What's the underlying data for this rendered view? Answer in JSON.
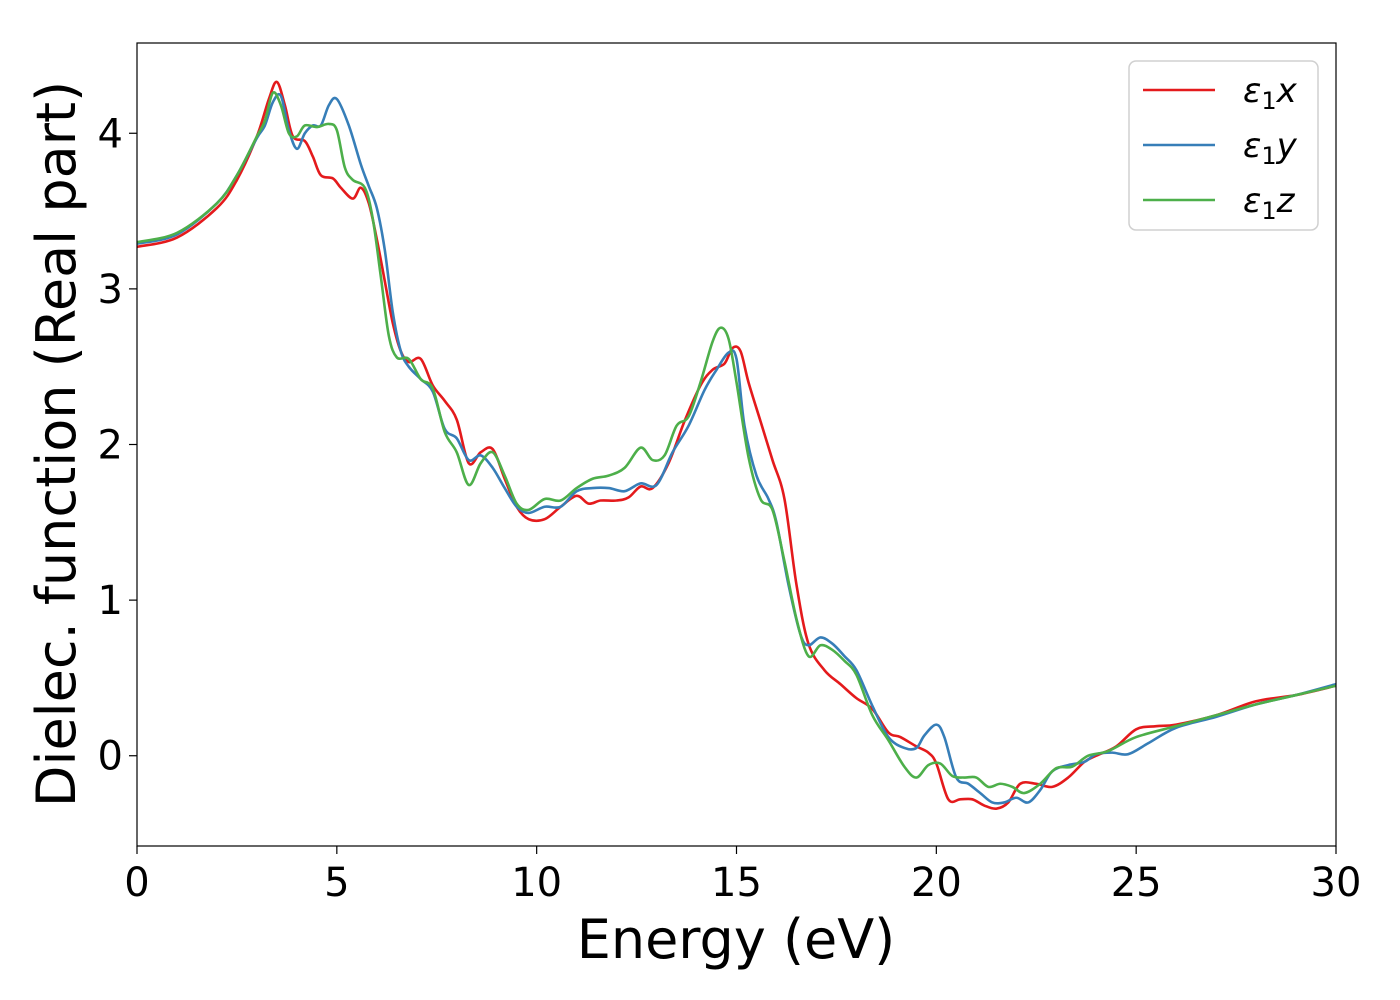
{
  "chart_data": {
    "type": "line",
    "title": "",
    "xlabel": "Energy (eV)",
    "ylabel": "Dielec. function (Real part)",
    "xlim": [
      0,
      30
    ],
    "ylim": [
      -0.58,
      4.58
    ],
    "xticks": [
      0,
      5,
      10,
      15,
      20,
      25,
      30
    ],
    "yticks": [
      0,
      1,
      2,
      3,
      4
    ],
    "grid": false,
    "legend_position": "top-right",
    "series": [
      {
        "name": "ε₁x",
        "label_main": "ε",
        "label_sub": "1",
        "label_axis": "x",
        "color": "#e41a1c",
        "x": [
          0,
          1,
          2,
          2.5,
          3,
          3.3,
          3.5,
          3.7,
          3.9,
          4.2,
          4.4,
          4.6,
          4.9,
          5.1,
          5.4,
          5.6,
          5.8,
          6.0,
          6.2,
          6.4,
          6.6,
          6.8,
          7.1,
          7.4,
          7.7,
          8.0,
          8.3,
          8.6,
          8.9,
          9.2,
          9.5,
          9.8,
          10.2,
          10.6,
          11.0,
          11.3,
          11.6,
          12.0,
          12.3,
          12.6,
          12.9,
          13.3,
          13.7,
          14.1,
          14.4,
          14.7,
          14.9,
          15.1,
          15.3,
          15.6,
          15.9,
          16.2,
          16.5,
          16.8,
          17.2,
          17.6,
          18.0,
          18.4,
          18.8,
          19.1,
          19.5,
          19.8,
          20.0,
          20.3,
          20.6,
          20.9,
          21.2,
          21.5,
          21.8,
          22.1,
          22.5,
          22.9,
          23.3,
          23.7,
          24.0,
          24.5,
          25.0,
          25.5,
          26.0,
          27.0,
          28.0,
          29.0,
          30.0
        ],
        "y": [
          3.27,
          3.33,
          3.52,
          3.7,
          3.98,
          4.22,
          4.33,
          4.18,
          3.98,
          3.95,
          3.85,
          3.73,
          3.71,
          3.65,
          3.58,
          3.65,
          3.55,
          3.32,
          3.05,
          2.78,
          2.6,
          2.53,
          2.55,
          2.38,
          2.28,
          2.16,
          1.88,
          1.95,
          1.97,
          1.78,
          1.6,
          1.52,
          1.52,
          1.6,
          1.67,
          1.62,
          1.64,
          1.64,
          1.66,
          1.73,
          1.72,
          1.88,
          2.15,
          2.38,
          2.48,
          2.52,
          2.62,
          2.6,
          2.4,
          2.15,
          1.9,
          1.65,
          1.1,
          0.72,
          0.55,
          0.46,
          0.37,
          0.3,
          0.15,
          0.12,
          0.06,
          0.02,
          -0.05,
          -0.28,
          -0.28,
          -0.28,
          -0.32,
          -0.34,
          -0.3,
          -0.18,
          -0.18,
          -0.2,
          -0.14,
          -0.04,
          0.0,
          0.06,
          0.17,
          0.19,
          0.2,
          0.26,
          0.35,
          0.39,
          0.45
        ]
      },
      {
        "name": "ε₁y",
        "label_main": "ε",
        "label_sub": "1",
        "label_axis": "y",
        "color": "#377eb8",
        "x": [
          0,
          1,
          2,
          2.5,
          3,
          3.2,
          3.4,
          3.6,
          3.8,
          4.0,
          4.2,
          4.4,
          4.6,
          4.8,
          5.0,
          5.3,
          5.6,
          5.8,
          6.0,
          6.2,
          6.4,
          6.6,
          6.8,
          7.1,
          7.4,
          7.7,
          8.0,
          8.3,
          8.6,
          8.9,
          9.2,
          9.5,
          9.8,
          10.2,
          10.6,
          11.0,
          11.4,
          11.8,
          12.2,
          12.6,
          13.0,
          13.4,
          13.8,
          14.2,
          14.5,
          14.8,
          15.0,
          15.2,
          15.5,
          15.8,
          16.0,
          16.3,
          16.6,
          16.8,
          17.1,
          17.4,
          17.7,
          18.0,
          18.4,
          18.8,
          19.2,
          19.5,
          19.7,
          20.0,
          20.2,
          20.5,
          20.8,
          21.1,
          21.4,
          21.7,
          22.0,
          22.3,
          22.6,
          22.9,
          23.3,
          23.7,
          24.0,
          24.4,
          24.8,
          25.3,
          26.0,
          27.0,
          28.0,
          29.0,
          30.0
        ],
        "y": [
          3.29,
          3.35,
          3.55,
          3.73,
          3.97,
          4.05,
          4.2,
          4.24,
          4.02,
          3.9,
          4.0,
          4.05,
          4.05,
          4.18,
          4.22,
          4.05,
          3.8,
          3.66,
          3.52,
          3.25,
          2.85,
          2.6,
          2.5,
          2.42,
          2.34,
          2.1,
          2.04,
          1.9,
          1.93,
          1.85,
          1.72,
          1.6,
          1.56,
          1.6,
          1.6,
          1.7,
          1.72,
          1.72,
          1.7,
          1.75,
          1.74,
          1.95,
          2.12,
          2.35,
          2.48,
          2.59,
          2.55,
          2.12,
          1.8,
          1.65,
          1.5,
          1.1,
          0.78,
          0.71,
          0.76,
          0.72,
          0.64,
          0.55,
          0.32,
          0.12,
          0.05,
          0.05,
          0.13,
          0.2,
          0.12,
          -0.14,
          -0.18,
          -0.24,
          -0.3,
          -0.3,
          -0.27,
          -0.3,
          -0.22,
          -0.1,
          -0.06,
          -0.04,
          0.01,
          0.02,
          0.01,
          0.08,
          0.18,
          0.25,
          0.33,
          0.39,
          0.46
        ]
      },
      {
        "name": "ε₁z",
        "label_main": "ε",
        "label_sub": "1",
        "label_axis": "z",
        "color": "#4daf4a",
        "x": [
          0,
          1,
          2,
          2.5,
          3,
          3.2,
          3.4,
          3.6,
          3.8,
          4.0,
          4.2,
          4.5,
          4.8,
          5.0,
          5.2,
          5.4,
          5.7,
          5.9,
          6.1,
          6.3,
          6.5,
          6.8,
          7.1,
          7.4,
          7.7,
          8.0,
          8.3,
          8.6,
          8.9,
          9.2,
          9.5,
          9.8,
          10.2,
          10.6,
          11.0,
          11.4,
          11.8,
          12.2,
          12.6,
          12.9,
          13.2,
          13.5,
          13.8,
          14.1,
          14.4,
          14.6,
          14.8,
          15.0,
          15.3,
          15.6,
          15.9,
          16.2,
          16.5,
          16.8,
          17.1,
          17.4,
          17.7,
          18.0,
          18.4,
          18.8,
          19.2,
          19.5,
          19.8,
          20.1,
          20.4,
          20.7,
          21.0,
          21.3,
          21.6,
          21.9,
          22.2,
          22.6,
          23.0,
          23.4,
          23.8,
          24.3,
          25.0,
          26.0,
          27.0,
          28.0,
          29.0,
          30.0
        ],
        "y": [
          3.3,
          3.36,
          3.55,
          3.73,
          3.98,
          4.08,
          4.26,
          4.18,
          4.0,
          3.98,
          4.05,
          4.04,
          4.06,
          4.02,
          3.78,
          3.7,
          3.65,
          3.45,
          3.08,
          2.7,
          2.56,
          2.55,
          2.42,
          2.36,
          2.08,
          1.95,
          1.74,
          1.88,
          1.95,
          1.8,
          1.62,
          1.58,
          1.65,
          1.64,
          1.72,
          1.78,
          1.8,
          1.85,
          1.98,
          1.9,
          1.93,
          2.12,
          2.18,
          2.4,
          2.66,
          2.75,
          2.68,
          2.4,
          1.92,
          1.65,
          1.58,
          1.25,
          0.88,
          0.64,
          0.71,
          0.68,
          0.61,
          0.52,
          0.26,
          0.1,
          -0.07,
          -0.14,
          -0.06,
          -0.05,
          -0.13,
          -0.14,
          -0.14,
          -0.2,
          -0.18,
          -0.2,
          -0.24,
          -0.18,
          -0.08,
          -0.07,
          0.0,
          0.03,
          0.12,
          0.19,
          0.26,
          0.33,
          0.39,
          0.45
        ]
      }
    ]
  }
}
